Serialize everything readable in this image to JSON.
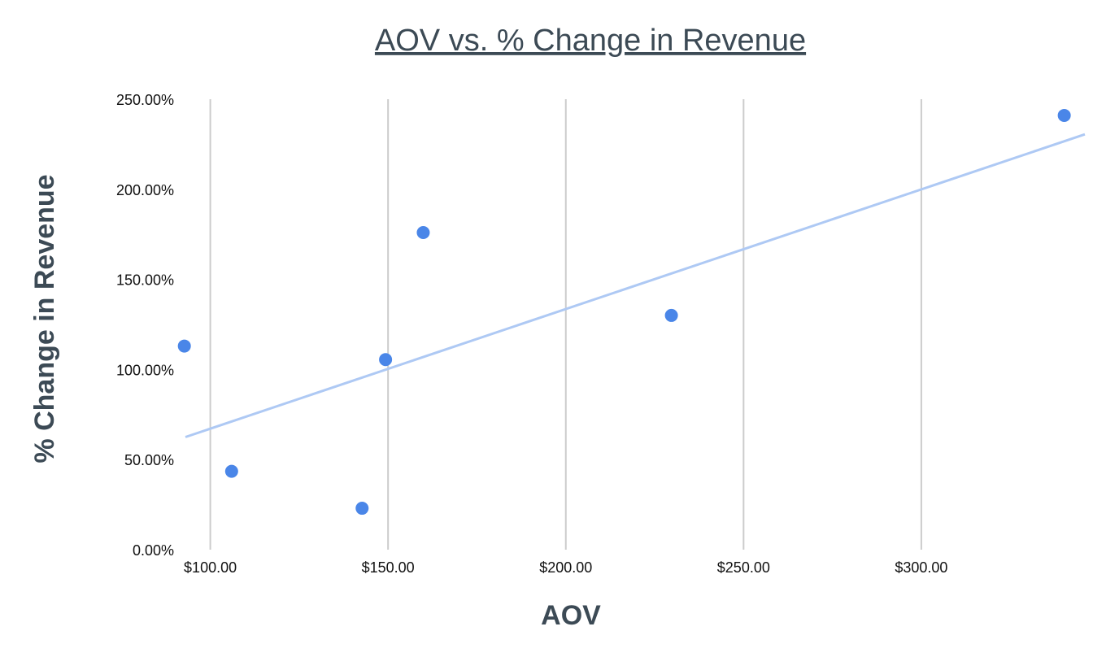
{
  "chart_data": {
    "type": "scatter",
    "title": "AOV vs. % Change in Revenue",
    "xlabel": "AOV",
    "ylabel": "% Change in Revenue",
    "xlim": [
      93,
      346
    ],
    "ylim": [
      0,
      250
    ],
    "x_ticks": [
      100,
      150,
      200,
      250,
      300
    ],
    "x_tick_labels": [
      "$100.00",
      "$150.00",
      "$200.00",
      "$250.00",
      "$300.00"
    ],
    "y_ticks": [
      0,
      50,
      100,
      150,
      200,
      250
    ],
    "y_tick_labels": [
      "0.00%",
      "50.00%",
      "100.00%",
      "150.00%",
      "200.00%",
      "250.00%"
    ],
    "grid": {
      "vertical": true,
      "horizontal": false
    },
    "series": [
      {
        "points": [
          {
            "x": 92.7,
            "y": 113.0
          },
          {
            "x": 106.0,
            "y": 43.5
          },
          {
            "x": 142.7,
            "y": 23.0
          },
          {
            "x": 149.3,
            "y": 105.5
          },
          {
            "x": 159.9,
            "y": 176.0
          },
          {
            "x": 229.7,
            "y": 130.0
          },
          {
            "x": 340.2,
            "y": 241.0
          }
        ]
      }
    ],
    "trendline": {
      "type": "linear",
      "x_range": [
        93,
        346
      ],
      "y_range": [
        62.5,
        230.5
      ]
    },
    "colors": {
      "points": "#4a86e8",
      "trendline": "#aec9f4",
      "grid": "#cccccc",
      "title": "#3c4a55"
    }
  }
}
